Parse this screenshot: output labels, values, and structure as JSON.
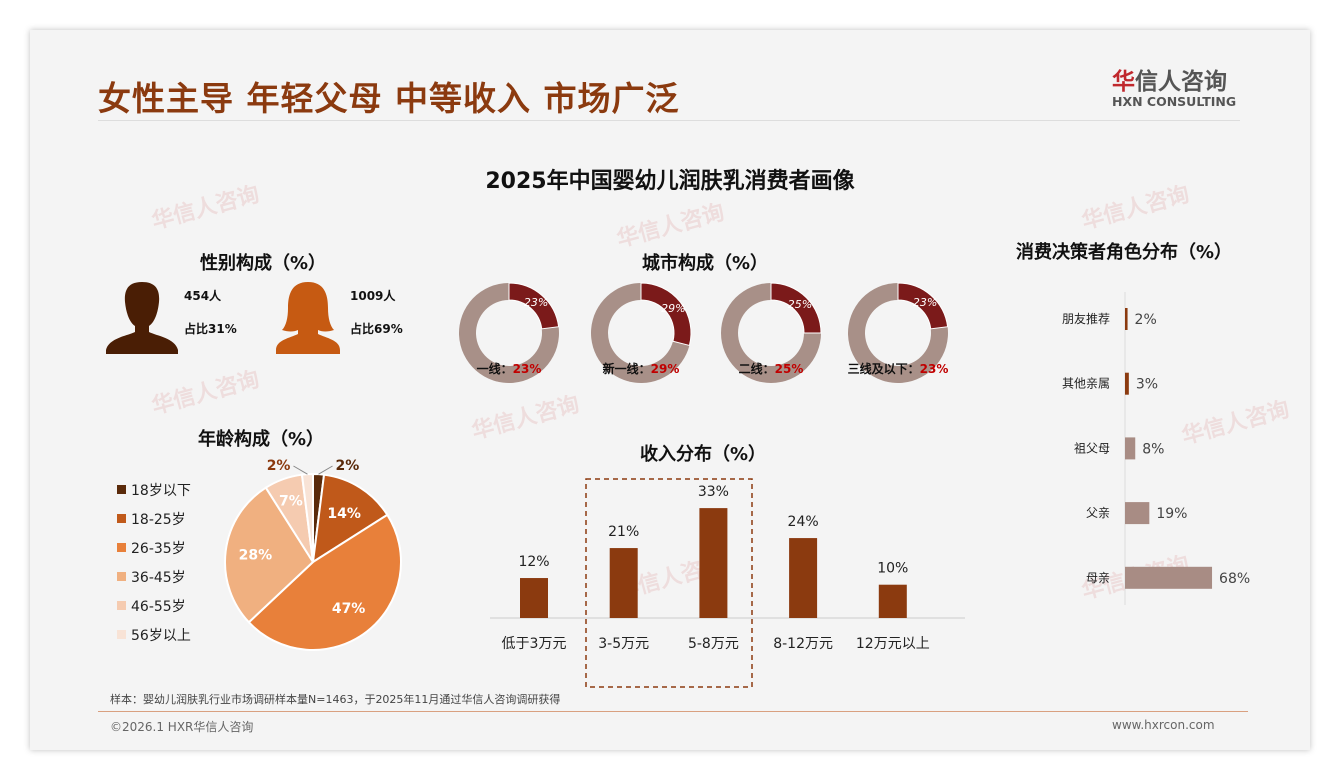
{
  "header": {
    "title": "女性主导 年轻父母 中等收入 市场广泛",
    "logo_cn": "华信人咨询",
    "logo_en": "HXN CONSULTING",
    "watermark": "华信人咨询"
  },
  "main_title": "2025年中国婴幼儿润肤乳消费者画像",
  "gender": {
    "title": "性别构成（%）",
    "male": {
      "count": "454人",
      "share": "占比31%"
    },
    "female": {
      "count": "1009人",
      "share": "占比69%"
    }
  },
  "colors": {
    "brown": "#8B3A0F",
    "donut_dark": "#7B1A1A",
    "donut_light": "#A89088",
    "decision": "#A88C84"
  },
  "chart_data": [
    {
      "type": "donut",
      "title": "城市构成（%）",
      "items": [
        {
          "name": "一线",
          "label": "一线：",
          "value": 23,
          "value_label": "23%"
        },
        {
          "name": "新一线",
          "label": "新一线：",
          "value": 29,
          "value_label": "29%"
        },
        {
          "name": "二线",
          "label": "二线：",
          "value": 25,
          "value_label": "25%"
        },
        {
          "name": "三线及以下",
          "label": "三线及以下：",
          "value": 23,
          "value_label": "23%"
        }
      ]
    },
    {
      "type": "pie",
      "title": "年龄构成（%）",
      "legend_position": "left",
      "categories": [
        "18岁以下",
        "18-25岁",
        "26-35岁",
        "36-45岁",
        "46-55岁",
        "56岁以上"
      ],
      "values": [
        2,
        14,
        47,
        28,
        7,
        2
      ],
      "labels": [
        "2%",
        "14%",
        "47%",
        "28%",
        "7%",
        "2%"
      ],
      "colors": [
        "#5A2A0A",
        "#C0591A",
        "#E8803A",
        "#F0B080",
        "#F5CBB0",
        "#F8E3D6"
      ]
    },
    {
      "type": "bar",
      "title": "收入分布（%）",
      "categories": [
        "低于3万元",
        "3-5万元",
        "5-8万元",
        "8-12万元",
        "12万元以上"
      ],
      "values": [
        12,
        21,
        33,
        24,
        10
      ],
      "labels": [
        "12%",
        "21%",
        "33%",
        "24%",
        "10%"
      ],
      "highlight": [
        "3-5万元",
        "5-8万元"
      ]
    },
    {
      "type": "bar",
      "orientation": "horizontal",
      "title": "消费决策者角色分布（%）",
      "categories": [
        "朋友推荐",
        "其他亲属",
        "祖父母",
        "父亲",
        "母亲"
      ],
      "values": [
        2,
        3,
        8,
        19,
        68
      ],
      "labels": [
        "2%",
        "3%",
        "8%",
        "19%",
        "68%"
      ]
    }
  ],
  "footer": {
    "note": "样本：婴幼儿润肤乳行业市场调研样本量N=1463，于2025年11月通过华信人咨询调研获得",
    "copyright": "©2026.1 HXR华信人咨询",
    "url": "www.hxrcon.com"
  }
}
